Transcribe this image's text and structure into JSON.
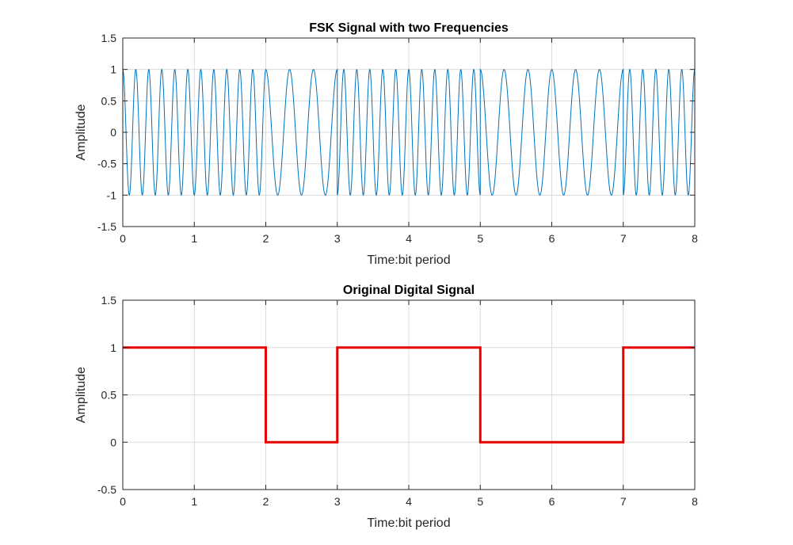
{
  "chart_data": [
    {
      "type": "line",
      "title": "FSK Signal with two Frequencies",
      "xlabel": "Time:bit period",
      "ylabel": "Amplitude",
      "xlim": [
        0,
        8
      ],
      "ylim": [
        -1.5,
        1.5
      ],
      "xticks": [
        "0",
        "1",
        "2",
        "3",
        "4",
        "5",
        "6",
        "7",
        "8"
      ],
      "yticks": [
        "-1.5",
        "-1",
        "-0.5",
        "0",
        "0.5",
        "1",
        "1.5"
      ],
      "grid": true,
      "series": [
        {
          "color": "#0072bd",
          "form": "cos(2*pi*f*t) per bit; f = high_freq when bit = 1, low_freq when bit = 0",
          "bits": [
            1,
            1,
            0,
            1,
            1,
            0,
            0,
            1
          ],
          "high_freq": 5.5,
          "low_freq": 3
        }
      ]
    },
    {
      "type": "line",
      "title": "Original Digital Signal",
      "xlabel": "Time:bit period",
      "ylabel": "Amplitude",
      "xlim": [
        0,
        8
      ],
      "ylim": [
        -0.5,
        1.5
      ],
      "xticks": [
        "0",
        "1",
        "2",
        "3",
        "4",
        "5",
        "6",
        "7",
        "8"
      ],
      "yticks": [
        "-0.5",
        "0",
        "0.5",
        "1",
        "1.5"
      ],
      "grid": true,
      "series": [
        {
          "color": "#e60000",
          "x": [
            0,
            2,
            2,
            3,
            3,
            5,
            5,
            7,
            7,
            8
          ],
          "y": [
            1,
            1,
            0,
            0,
            1,
            1,
            0,
            0,
            1,
            1
          ]
        }
      ]
    }
  ]
}
